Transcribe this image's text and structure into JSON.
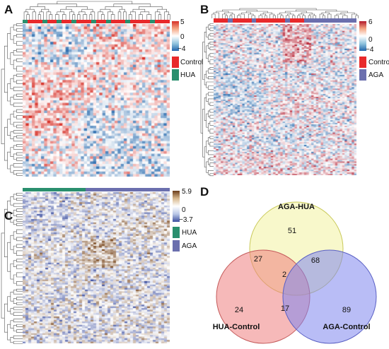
{
  "panels": {
    "A": {
      "label": "A",
      "scale_max": "5",
      "scale_mid": "0",
      "scale_min": "−4",
      "legend": [
        {
          "name": "Control",
          "color": "#e8292b"
        },
        {
          "name": "HUA",
          "color": "#2a8f6e"
        }
      ]
    },
    "B": {
      "label": "B",
      "scale_max": "6",
      "scale_mid": "0",
      "scale_min": "−4",
      "legend": [
        {
          "name": "Control",
          "color": "#e8292b"
        },
        {
          "name": "AGA",
          "color": "#6b6fae"
        }
      ]
    },
    "C": {
      "label": "C",
      "scale_max": "5.9",
      "scale_mid": "0",
      "scale_min": "−3.7",
      "legend": [
        {
          "name": "HUA",
          "color": "#2a8f6e"
        },
        {
          "name": "AGA",
          "color": "#6b6fae"
        }
      ]
    },
    "D": {
      "label": "D"
    }
  },
  "chart_data": [
    {
      "type": "heatmap",
      "panel": "A",
      "groups": [
        "Control",
        "HUA"
      ],
      "color_range": [
        -4,
        5
      ]
    },
    {
      "type": "heatmap",
      "panel": "B",
      "groups": [
        "Control",
        "AGA"
      ],
      "color_range": [
        -4,
        6
      ]
    },
    {
      "type": "heatmap",
      "panel": "C",
      "groups": [
        "HUA",
        "AGA"
      ],
      "color_range": [
        -3.7,
        5.9
      ]
    },
    {
      "type": "venn",
      "panel": "D",
      "sets": [
        {
          "name": "AGA-HUA",
          "color": "#f2f2a0"
        },
        {
          "name": "HUA-Control",
          "color": "#ee7f7f"
        },
        {
          "name": "AGA-Control",
          "color": "#7f86ee"
        }
      ],
      "regions": {
        "AGA-HUA only": "51",
        "HUA-Control only": "24",
        "AGA-Control only": "89",
        "AGA-HUA & HUA-Control": "27",
        "AGA-HUA & AGA-Control": "68",
        "HUA-Control & AGA-Control": "17",
        "all": "2"
      }
    }
  ]
}
